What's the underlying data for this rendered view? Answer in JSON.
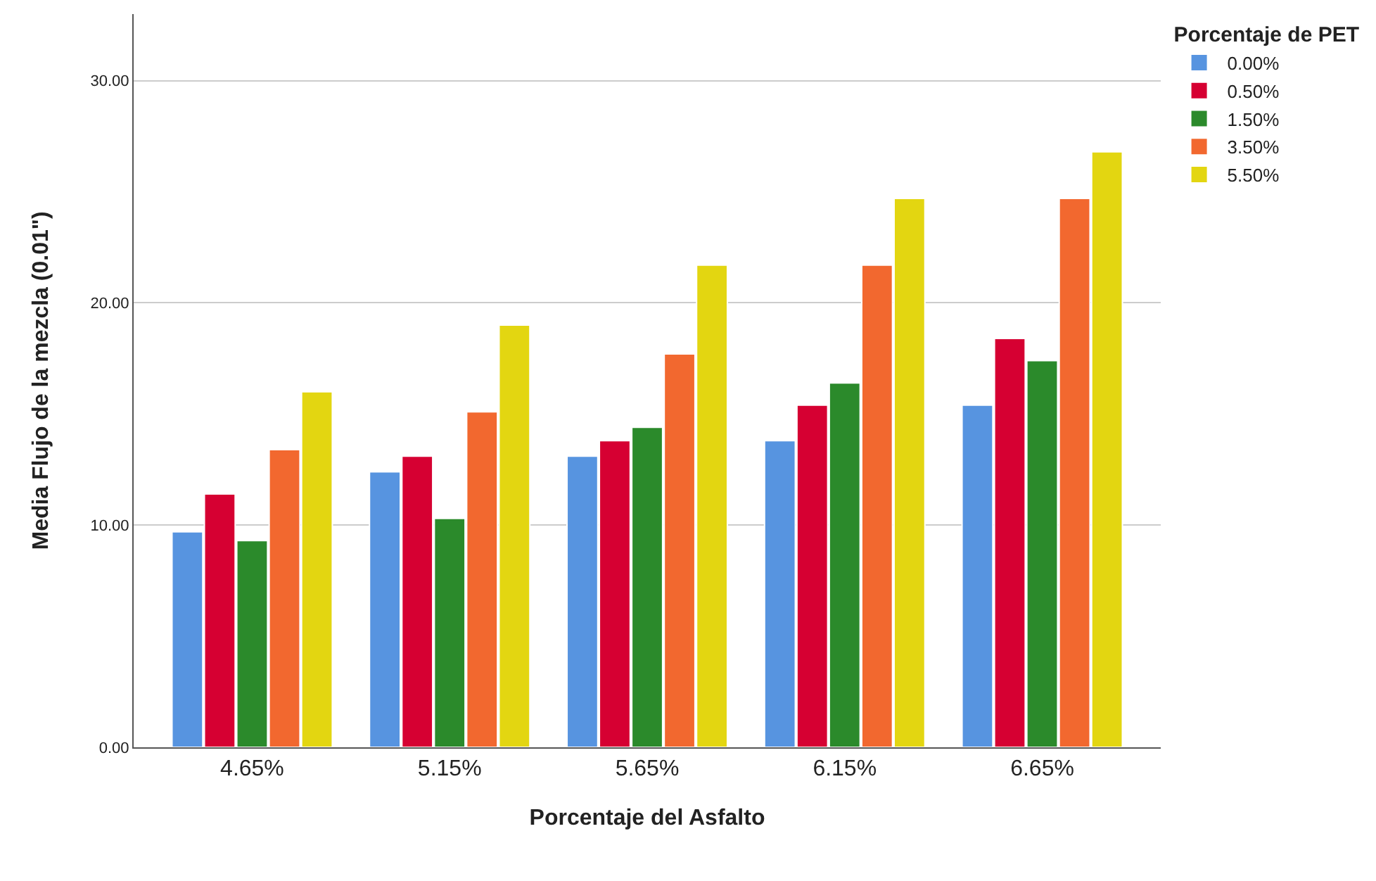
{
  "chart_data": {
    "type": "bar",
    "xlabel": "Porcentaje del Asfalto",
    "ylabel": "Media Flujo de la mezcla (0.01\")",
    "legend_title": "Porcentaje de PET",
    "categories": [
      "4.65%",
      "5.15%",
      "5.65%",
      "6.15%",
      "6.65%"
    ],
    "series": [
      {
        "name": "0.00%",
        "color": "#5794e0",
        "values": [
          9.7,
          12.4,
          13.1,
          13.8,
          15.4
        ]
      },
      {
        "name": "0.50%",
        "color": "#d60032",
        "values": [
          11.4,
          13.1,
          13.8,
          15.4,
          18.4
        ]
      },
      {
        "name": "1.50%",
        "color": "#2b8a2b",
        "values": [
          9.3,
          10.3,
          14.4,
          16.4,
          17.4
        ]
      },
      {
        "name": "3.50%",
        "color": "#f2682f",
        "values": [
          13.4,
          15.1,
          17.7,
          21.7,
          24.7
        ]
      },
      {
        "name": "5.50%",
        "color": "#e3d611",
        "values": [
          16.0,
          19.0,
          21.7,
          24.7,
          26.8
        ]
      }
    ],
    "ylim": [
      0,
      33
    ],
    "yticks": [
      {
        "value": 0,
        "label": "0.00"
      },
      {
        "value": 10,
        "label": "10.00"
      },
      {
        "value": 20,
        "label": "20.00"
      },
      {
        "value": 30,
        "label": "30.00"
      }
    ],
    "grid": "y",
    "legend": "top right"
  }
}
